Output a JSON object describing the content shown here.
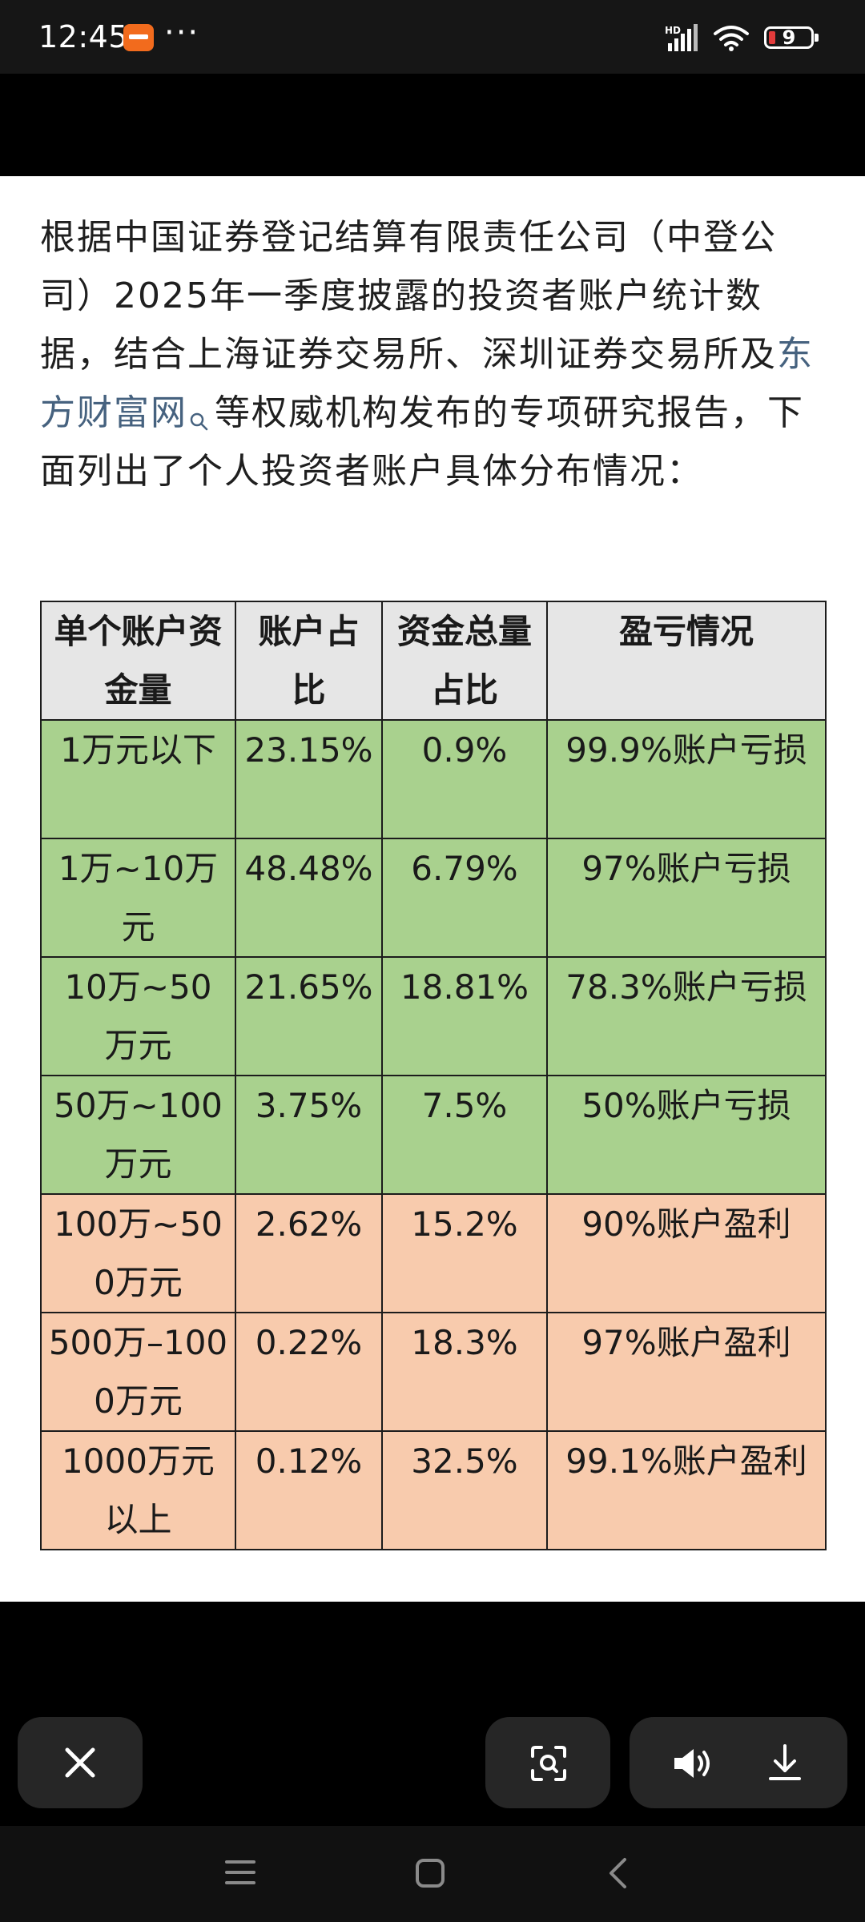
{
  "status_bar": {
    "time": "12:45",
    "more_dots": "···",
    "network_label": "HD",
    "battery_level": "9",
    "battery_color": "#e23b3b"
  },
  "article": {
    "intro_text_1": "根据中国证券登记结算有限责任公司（中登公司）2025年一季度披露的投资者账户统计数据，结合上海证券交易所、深圳证券交易所及",
    "intro_link": "东方财富网",
    "intro_text_2": "等权威机构发布的专项研究报告，下面列出了个人投资者账户具体分布情况："
  },
  "table": {
    "headers": [
      "单个账户资金量",
      "账户占比",
      "资金总量占比",
      "盈亏情况"
    ],
    "rows": [
      {
        "range": "1万元以下",
        "account_share": "23.15%",
        "fund_share": "0.9%",
        "result": "99.9%账户亏损"
      },
      {
        "range": "1万~10万元",
        "account_share": "48.48%",
        "fund_share": "6.79%",
        "result": "97%账户亏损"
      },
      {
        "range": "10万~50万元",
        "account_share": "21.65%",
        "fund_share": "18.81%",
        "result": "78.3%账户亏损"
      },
      {
        "range": "50万~100万元",
        "account_share": "3.75%",
        "fund_share": "7.5%",
        "result": "50%账户亏损"
      },
      {
        "range": "100万~500万元",
        "account_share": "2.62%",
        "fund_share": "15.2%",
        "result": "90%账户盈利"
      },
      {
        "range": "500万–1000万元",
        "account_share": "0.22%",
        "fund_share": "18.3%",
        "result": "97%账户盈利"
      },
      {
        "range": "1000万元以上",
        "account_share": "0.12%",
        "fund_share": "32.5%",
        "result": "99.1%账户盈利"
      }
    ],
    "loss_row_color": "#a9d18e",
    "profit_row_color": "#f8cbad"
  },
  "actions": {
    "close_icon": "close-icon",
    "scan_icon": "scan-icon",
    "volume_icon": "volume-icon",
    "download_icon": "download-icon"
  },
  "nav": {
    "menu_icon": "menu-icon",
    "home_icon": "home-icon",
    "back_icon": "back-icon"
  }
}
